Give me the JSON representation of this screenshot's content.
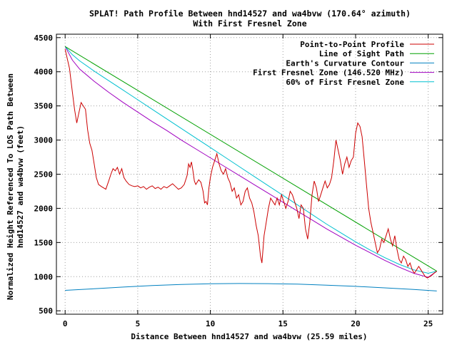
{
  "chart_data": {
    "type": "line",
    "title": "SPLAT! Path Profile Between hnd14527 and wa4bvw (170.64° azimuth)",
    "subtitle": "With First Fresnel Zone",
    "xlabel": "Distance Between hnd14527 and wa4bvw (25.59 miles)",
    "ylabel_lines": [
      "Normalized Height Referenced To LOS Path Between",
      "hnd14527 and wa4bvw (feet)"
    ],
    "xlim": [
      -0.6,
      26.0
    ],
    "ylim": [
      450,
      4550
    ],
    "x_ticks": [
      0,
      5,
      10,
      15,
      20,
      25
    ],
    "y_ticks": [
      500,
      1000,
      1500,
      2000,
      2500,
      3000,
      3500,
      4000,
      4500
    ],
    "grid": true,
    "legend_position": "top-right",
    "series": [
      {
        "name": "Point-to-Point Profile",
        "color": "#cc0000",
        "points": [
          [
            0,
            4330
          ],
          [
            0.3,
            4050
          ],
          [
            0.5,
            3700
          ],
          [
            0.65,
            3450
          ],
          [
            0.8,
            3250
          ],
          [
            0.95,
            3400
          ],
          [
            1.1,
            3550
          ],
          [
            1.25,
            3500
          ],
          [
            1.4,
            3450
          ],
          [
            1.55,
            3150
          ],
          [
            1.7,
            2950
          ],
          [
            1.85,
            2850
          ],
          [
            2.0,
            2650
          ],
          [
            2.15,
            2450
          ],
          [
            2.3,
            2350
          ],
          [
            2.5,
            2320
          ],
          [
            2.65,
            2300
          ],
          [
            2.8,
            2280
          ],
          [
            3.0,
            2400
          ],
          [
            3.15,
            2500
          ],
          [
            3.3,
            2580
          ],
          [
            3.45,
            2550
          ],
          [
            3.6,
            2600
          ],
          [
            3.75,
            2500
          ],
          [
            3.9,
            2580
          ],
          [
            4.05,
            2450
          ],
          [
            4.2,
            2400
          ],
          [
            4.4,
            2350
          ],
          [
            4.6,
            2330
          ],
          [
            4.8,
            2320
          ],
          [
            5.0,
            2330
          ],
          [
            5.2,
            2300
          ],
          [
            5.4,
            2320
          ],
          [
            5.6,
            2280
          ],
          [
            5.8,
            2310
          ],
          [
            6.0,
            2330
          ],
          [
            6.2,
            2290
          ],
          [
            6.4,
            2310
          ],
          [
            6.6,
            2280
          ],
          [
            6.8,
            2320
          ],
          [
            7.0,
            2300
          ],
          [
            7.2,
            2330
          ],
          [
            7.4,
            2360
          ],
          [
            7.6,
            2320
          ],
          [
            7.8,
            2280
          ],
          [
            8.0,
            2300
          ],
          [
            8.2,
            2350
          ],
          [
            8.4,
            2480
          ],
          [
            8.5,
            2650
          ],
          [
            8.6,
            2600
          ],
          [
            8.7,
            2680
          ],
          [
            8.8,
            2550
          ],
          [
            8.9,
            2400
          ],
          [
            9.0,
            2350
          ],
          [
            9.2,
            2420
          ],
          [
            9.35,
            2380
          ],
          [
            9.5,
            2250
          ],
          [
            9.6,
            2080
          ],
          [
            9.7,
            2100
          ],
          [
            9.8,
            2050
          ],
          [
            9.9,
            2300
          ],
          [
            10.0,
            2450
          ],
          [
            10.15,
            2600
          ],
          [
            10.3,
            2700
          ],
          [
            10.45,
            2800
          ],
          [
            10.6,
            2650
          ],
          [
            10.75,
            2550
          ],
          [
            10.9,
            2500
          ],
          [
            11.05,
            2580
          ],
          [
            11.2,
            2450
          ],
          [
            11.35,
            2380
          ],
          [
            11.5,
            2250
          ],
          [
            11.65,
            2300
          ],
          [
            11.8,
            2150
          ],
          [
            11.95,
            2200
          ],
          [
            12.1,
            2050
          ],
          [
            12.25,
            2100
          ],
          [
            12.4,
            2250
          ],
          [
            12.55,
            2300
          ],
          [
            12.7,
            2150
          ],
          [
            12.85,
            2080
          ],
          [
            13.0,
            1950
          ],
          [
            13.15,
            1750
          ],
          [
            13.3,
            1600
          ],
          [
            13.45,
            1300
          ],
          [
            13.55,
            1200
          ],
          [
            13.7,
            1600
          ],
          [
            13.85,
            1800
          ],
          [
            14.0,
            2000
          ],
          [
            14.15,
            2150
          ],
          [
            14.3,
            2100
          ],
          [
            14.45,
            2050
          ],
          [
            14.6,
            2150
          ],
          [
            14.75,
            2050
          ],
          [
            14.9,
            2200
          ],
          [
            15.05,
            2100
          ],
          [
            15.2,
            2000
          ],
          [
            15.35,
            2100
          ],
          [
            15.5,
            2250
          ],
          [
            15.65,
            2200
          ],
          [
            15.8,
            2100
          ],
          [
            15.95,
            2000
          ],
          [
            16.1,
            1850
          ],
          [
            16.25,
            2050
          ],
          [
            16.4,
            2000
          ],
          [
            16.55,
            1700
          ],
          [
            16.7,
            1550
          ],
          [
            16.85,
            1800
          ],
          [
            17.0,
            2200
          ],
          [
            17.15,
            2400
          ],
          [
            17.3,
            2300
          ],
          [
            17.45,
            2100
          ],
          [
            17.6,
            2200
          ],
          [
            17.75,
            2300
          ],
          [
            17.9,
            2400
          ],
          [
            18.05,
            2300
          ],
          [
            18.2,
            2350
          ],
          [
            18.35,
            2450
          ],
          [
            18.5,
            2700
          ],
          [
            18.65,
            3000
          ],
          [
            18.8,
            2850
          ],
          [
            18.95,
            2700
          ],
          [
            19.1,
            2500
          ],
          [
            19.25,
            2650
          ],
          [
            19.4,
            2750
          ],
          [
            19.55,
            2600
          ],
          [
            19.7,
            2700
          ],
          [
            19.85,
            2750
          ],
          [
            20.0,
            3100
          ],
          [
            20.15,
            3250
          ],
          [
            20.3,
            3200
          ],
          [
            20.45,
            3050
          ],
          [
            20.6,
            2700
          ],
          [
            20.75,
            2350
          ],
          [
            20.9,
            2000
          ],
          [
            21.05,
            1800
          ],
          [
            21.2,
            1650
          ],
          [
            21.35,
            1500
          ],
          [
            21.5,
            1350
          ],
          [
            21.65,
            1400
          ],
          [
            21.8,
            1550
          ],
          [
            21.95,
            1500
          ],
          [
            22.1,
            1600
          ],
          [
            22.25,
            1700
          ],
          [
            22.4,
            1550
          ],
          [
            22.55,
            1450
          ],
          [
            22.7,
            1600
          ],
          [
            22.85,
            1400
          ],
          [
            23.0,
            1250
          ],
          [
            23.15,
            1200
          ],
          [
            23.3,
            1300
          ],
          [
            23.45,
            1250
          ],
          [
            23.6,
            1150
          ],
          [
            23.75,
            1200
          ],
          [
            23.9,
            1100
          ],
          [
            24.05,
            1050
          ],
          [
            24.2,
            1100
          ],
          [
            24.35,
            1150
          ],
          [
            24.5,
            1100
          ],
          [
            24.65,
            1050
          ],
          [
            24.8,
            1000
          ],
          [
            24.95,
            980
          ],
          [
            25.1,
            1000
          ],
          [
            25.25,
            1020
          ],
          [
            25.4,
            1050
          ],
          [
            25.59,
            1080
          ]
        ]
      },
      {
        "name": "Line of Sight Path",
        "color": "#00a000",
        "points": [
          [
            0,
            4370
          ],
          [
            25.59,
            1080
          ]
        ]
      },
      {
        "name": "Earth's Curvature Contour",
        "color": "#0080c0",
        "points": [
          [
            0,
            800
          ],
          [
            2,
            822
          ],
          [
            4,
            848
          ],
          [
            6,
            870
          ],
          [
            8,
            885
          ],
          [
            10,
            895
          ],
          [
            12,
            900
          ],
          [
            14,
            898
          ],
          [
            16,
            890
          ],
          [
            18,
            876
          ],
          [
            20,
            858
          ],
          [
            22,
            836
          ],
          [
            24,
            812
          ],
          [
            25.59,
            790
          ]
        ]
      },
      {
        "name": "First Fresnel Zone (146.520 MHz)",
        "color": "#a000c0",
        "points": [
          [
            0,
            4370
          ],
          [
            0.5,
            4170
          ],
          [
            1,
            4040
          ],
          [
            2,
            3860
          ],
          [
            3,
            3700
          ],
          [
            4,
            3550
          ],
          [
            5,
            3410
          ],
          [
            6,
            3270
          ],
          [
            7,
            3140
          ],
          [
            8,
            3000
          ],
          [
            9,
            2870
          ],
          [
            10,
            2740
          ],
          [
            11,
            2610
          ],
          [
            12,
            2480
          ],
          [
            13,
            2350
          ],
          [
            14,
            2220
          ],
          [
            15,
            2090
          ],
          [
            16,
            1960
          ],
          [
            17,
            1830
          ],
          [
            18,
            1700
          ],
          [
            19,
            1580
          ],
          [
            20,
            1460
          ],
          [
            21,
            1350
          ],
          [
            22,
            1240
          ],
          [
            23,
            1140
          ],
          [
            24,
            1050
          ],
          [
            25,
            990
          ],
          [
            25.59,
            1080
          ]
        ]
      },
      {
        "name": "60% of First Fresnel Zone",
        "color": "#00c0d0",
        "points": [
          [
            0,
            4370
          ],
          [
            0.5,
            4250
          ],
          [
            1,
            4160
          ],
          [
            2,
            4010
          ],
          [
            3,
            3870
          ],
          [
            4,
            3730
          ],
          [
            5,
            3590
          ],
          [
            6,
            3450
          ],
          [
            7,
            3310
          ],
          [
            8,
            3170
          ],
          [
            9,
            3030
          ],
          [
            10,
            2890
          ],
          [
            11,
            2750
          ],
          [
            12,
            2610
          ],
          [
            13,
            2470
          ],
          [
            14,
            2330
          ],
          [
            15,
            2190
          ],
          [
            16,
            2050
          ],
          [
            17,
            1910
          ],
          [
            18,
            1770
          ],
          [
            19,
            1640
          ],
          [
            20,
            1510
          ],
          [
            21,
            1390
          ],
          [
            22,
            1280
          ],
          [
            23,
            1180
          ],
          [
            24,
            1100
          ],
          [
            25,
            1050
          ],
          [
            25.59,
            1080
          ]
        ]
      }
    ]
  }
}
